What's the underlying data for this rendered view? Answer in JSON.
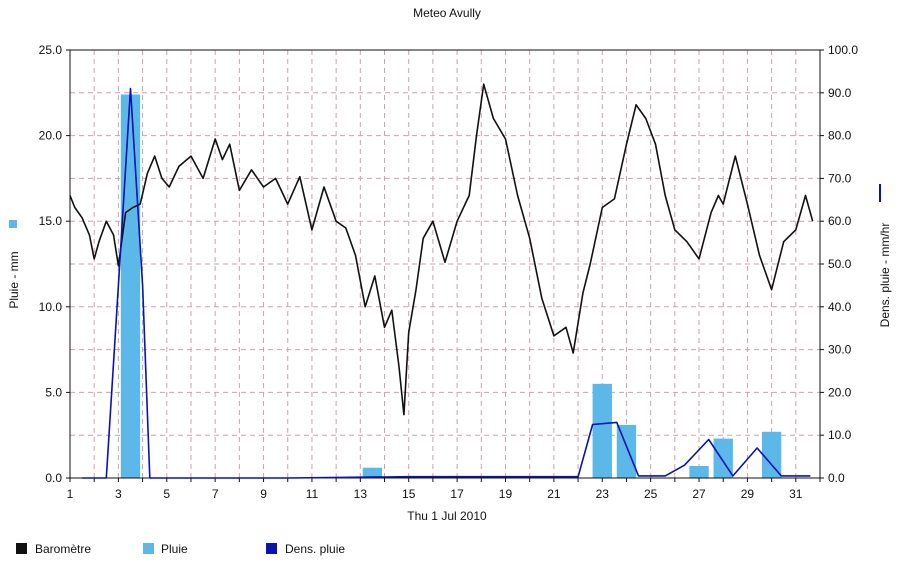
{
  "chart_data": {
    "type": "bar",
    "title": "Meteo  Avully",
    "xlabel": "Thu 1 Jul 2010",
    "ylabel_left": "Pluie - mm",
    "ylabel_right": "Dens. pluie - mm/hr",
    "xlim": [
      1,
      32
    ],
    "ylim_left": [
      0,
      25
    ],
    "ylim_right": [
      0,
      100
    ],
    "x_ticks": [
      "1",
      "3",
      "5",
      "7",
      "9",
      "11",
      "13",
      "15",
      "17",
      "19",
      "21",
      "23",
      "25",
      "27",
      "29",
      "31"
    ],
    "y_left_ticks": [
      "0.0",
      "5.0",
      "10.0",
      "15.0",
      "20.0",
      "25.0"
    ],
    "y_right_ticks": [
      "0.0",
      "10.0",
      "20.0",
      "30.0",
      "40.0",
      "50.0",
      "60.0",
      "70.0",
      "80.0",
      "90.0",
      "100.0"
    ],
    "grid": true,
    "legend_position": "bottom",
    "legend": [
      "Baromètre",
      "Pluie",
      "Dens. pluie"
    ],
    "colors": {
      "barometre": "#111111",
      "pluie": "#5bb8e8",
      "dens": "#0a12b0",
      "grid": "#c7a3b1"
    },
    "series": [
      {
        "name": "Pluie",
        "type": "bar",
        "axis": "left",
        "x": [
          3.5,
          13.5,
          23,
          24,
          27,
          28,
          30
        ],
        "values": [
          22.4,
          0.6,
          5.5,
          3.1,
          0.7,
          2.3,
          2.7
        ]
      },
      {
        "name": "Dens. pluie",
        "type": "line",
        "axis": "right",
        "x": [
          1.5,
          2.5,
          3.0,
          3.5,
          4.0,
          4.3,
          5,
          10,
          15,
          20,
          22.0,
          22.6,
          23.6,
          24.5,
          25.6,
          26.4,
          27.4,
          28.4,
          29.4,
          30.4,
          31.6
        ],
        "values": [
          0,
          0,
          45,
          91,
          45,
          0,
          0,
          0,
          0.3,
          0.3,
          0.3,
          12.5,
          13,
          0.5,
          0.5,
          3,
          9,
          0.5,
          7,
          0.5,
          0.5
        ]
      },
      {
        "name": "Baromètre",
        "type": "line",
        "axis": "left",
        "x": [
          1.0,
          1.2,
          1.5,
          1.8,
          2.0,
          2.2,
          2.5,
          2.8,
          3.0,
          3.3,
          3.6,
          3.9,
          4.2,
          4.5,
          4.8,
          5.1,
          5.5,
          6.0,
          6.5,
          7.0,
          7.3,
          7.6,
          8.0,
          8.5,
          9.0,
          9.5,
          10.0,
          10.5,
          11.0,
          11.5,
          12.0,
          12.4,
          12.8,
          13.2,
          13.6,
          14.0,
          14.3,
          14.6,
          14.8,
          15.0,
          15.3,
          15.6,
          16.0,
          16.5,
          17.0,
          17.5,
          17.8,
          18.1,
          18.5,
          19.0,
          19.5,
          20.0,
          20.5,
          21.0,
          21.5,
          21.8,
          22.2,
          22.5,
          23.0,
          23.5,
          24.0,
          24.4,
          24.8,
          25.2,
          25.6,
          26.0,
          26.5,
          27.0,
          27.5,
          27.8,
          28.0,
          28.5,
          29.0,
          29.5,
          30.0,
          30.5,
          31.0,
          31.4,
          31.7
        ],
        "values": [
          16.5,
          15.8,
          15.2,
          14.2,
          12.8,
          13.8,
          15.0,
          14.2,
          12.4,
          15.5,
          15.8,
          16.0,
          17.8,
          18.8,
          17.5,
          17.0,
          18.2,
          18.8,
          17.5,
          19.8,
          18.6,
          19.5,
          16.8,
          18.0,
          17.0,
          17.5,
          16.0,
          17.6,
          14.5,
          17.0,
          15.0,
          14.6,
          13.0,
          10.0,
          11.8,
          8.8,
          9.8,
          6.5,
          3.7,
          8.5,
          11.0,
          14.0,
          15.0,
          12.6,
          15.0,
          16.5,
          20.0,
          23.0,
          21.0,
          19.8,
          16.5,
          14.0,
          10.5,
          8.3,
          8.8,
          7.3,
          10.8,
          12.5,
          15.8,
          16.3,
          19.5,
          21.8,
          21.0,
          19.5,
          16.5,
          14.5,
          13.8,
          12.8,
          15.5,
          16.5,
          16.0,
          18.8,
          16.0,
          13.0,
          11.0,
          13.8,
          14.5,
          16.5,
          15.0
        ]
      }
    ]
  }
}
